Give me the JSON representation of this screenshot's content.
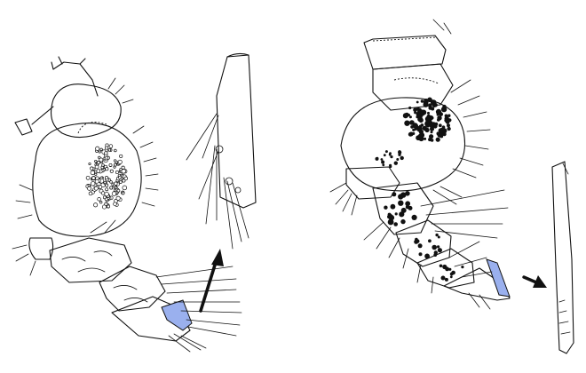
{
  "figure": {
    "colors": {
      "ink": "#111111",
      "highlight": "#9ab0ee",
      "background": "#ffffff"
    },
    "panels": [
      {
        "id": "left",
        "elements": [
          "appendage",
          "enlarged-segment",
          "pointer-arrow"
        ]
      },
      {
        "id": "right",
        "elements": [
          "appendage",
          "enlarged-segment",
          "pointer-arrow"
        ]
      }
    ]
  }
}
